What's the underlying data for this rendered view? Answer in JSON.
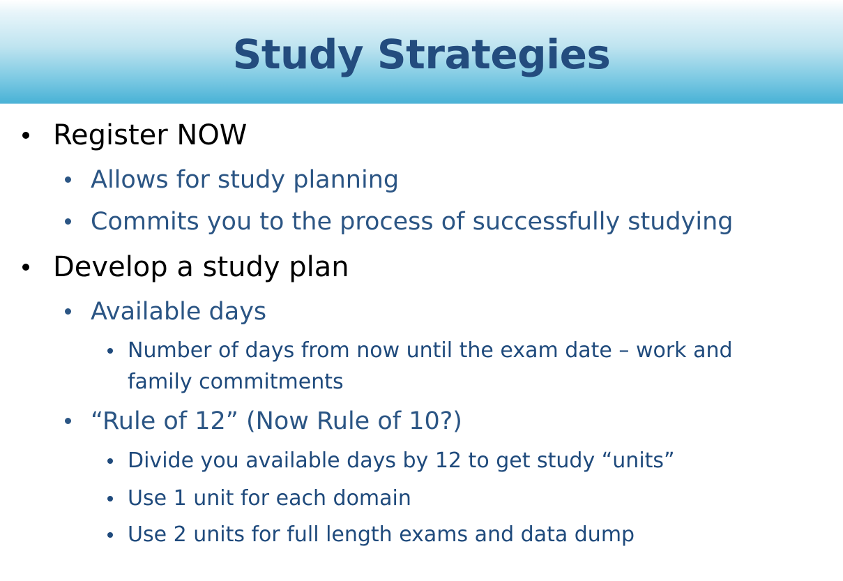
{
  "slide": {
    "title": "Study Strategies",
    "colors": {
      "title": "#234c7e",
      "level1_text": "#000000",
      "level2_text": "#2b5584",
      "level3_text": "#1f4a7c",
      "header_band": "#49b2d6"
    },
    "bullets": {
      "register": {
        "label": "Register NOW",
        "sub1": "Allows for study planning",
        "sub2": "Commits you to the process of successfully studying"
      },
      "plan": {
        "label": "Develop a study plan",
        "days": {
          "label": "Available days",
          "detail_line1": "Number of days from now until the exam date – work and",
          "detail_line2": "family commitments"
        },
        "rule": {
          "label": "“Rule of 12” (Now Rule of 10?)",
          "detail1": "Divide you available days by 12 to get study “units”",
          "detail2": "Use 1 unit for each domain",
          "detail3": "Use 2 units for full length exams and data dump"
        }
      }
    }
  }
}
